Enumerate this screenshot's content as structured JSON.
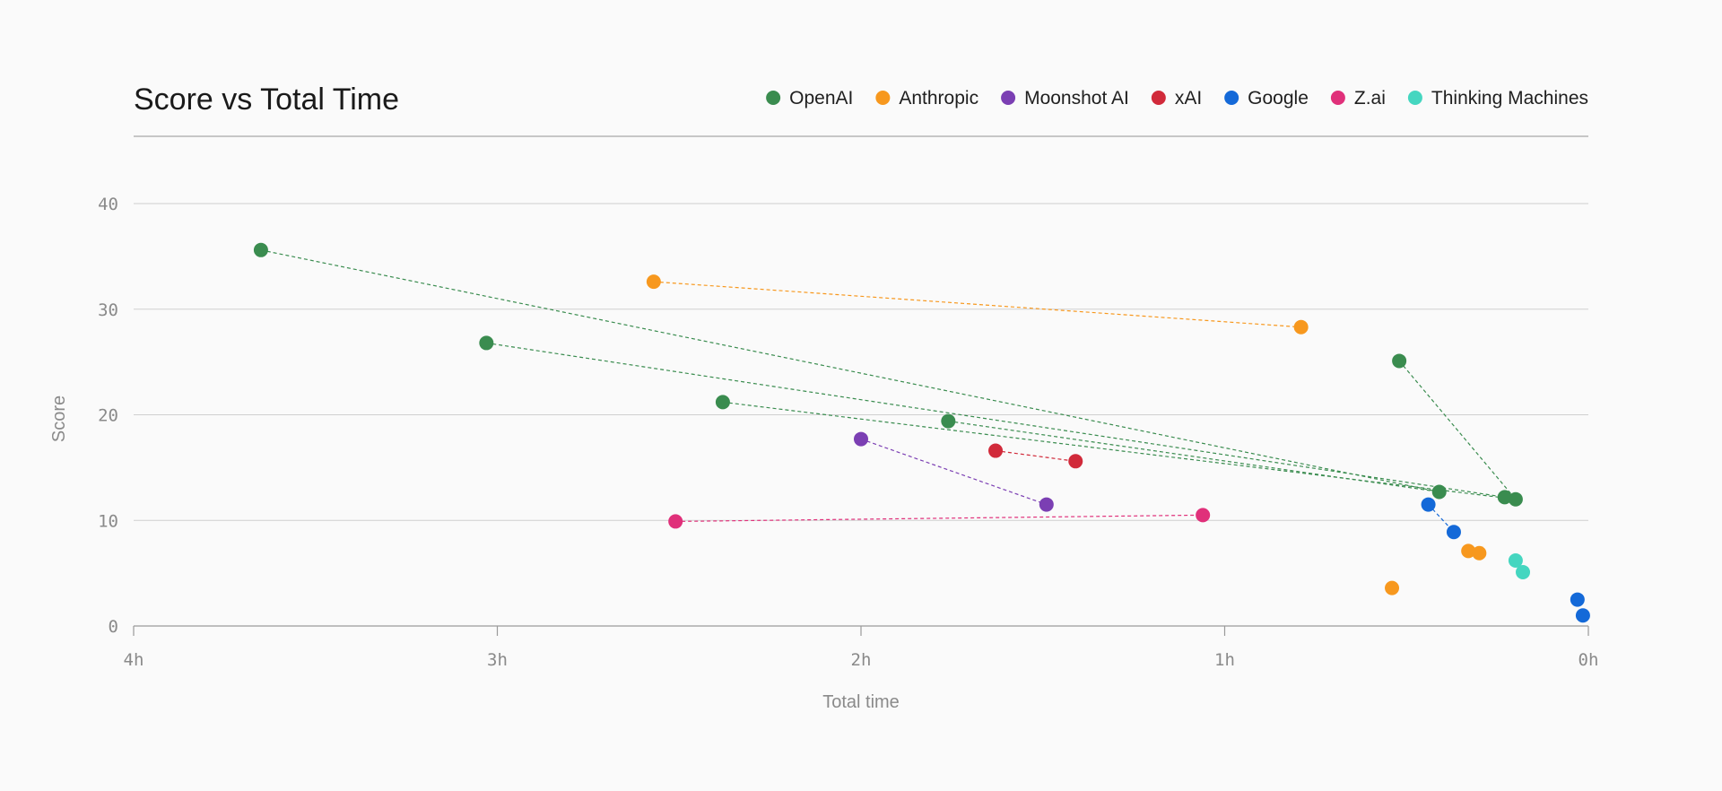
{
  "chart_data": {
    "type": "scatter",
    "title": "Score vs Total Time",
    "xlabel": "Total time",
    "ylabel": "Score",
    "x_unit": "hours",
    "x_reversed": true,
    "xlim": [
      4,
      0
    ],
    "ylim": [
      0,
      40
    ],
    "x_ticks": [
      {
        "value": 4,
        "label": "4h"
      },
      {
        "value": 3,
        "label": "3h"
      },
      {
        "value": 2,
        "label": "2h"
      },
      {
        "value": 1,
        "label": "1h"
      },
      {
        "value": 0,
        "label": "0h"
      }
    ],
    "y_ticks": [
      {
        "value": 0,
        "label": "0"
      },
      {
        "value": 10,
        "label": "10"
      },
      {
        "value": 20,
        "label": "20"
      },
      {
        "value": 30,
        "label": "30"
      },
      {
        "value": 40,
        "label": "40"
      }
    ],
    "grid": true,
    "legend_position": "top-right",
    "series": [
      {
        "name": "OpenAI",
        "color": "#3a8c4f",
        "points": [
          {
            "x": 3.65,
            "y": 35.6
          },
          {
            "x": 3.03,
            "y": 26.8
          },
          {
            "x": 2.38,
            "y": 21.2
          },
          {
            "x": 1.76,
            "y": 19.4
          },
          {
            "x": 0.52,
            "y": 25.1
          },
          {
            "x": 0.41,
            "y": 12.7
          },
          {
            "x": 0.23,
            "y": 12.2
          },
          {
            "x": 0.2,
            "y": 12.0
          }
        ],
        "connections": [
          [
            0,
            5
          ],
          [
            1,
            6
          ],
          [
            2,
            7
          ],
          [
            3,
            5
          ],
          [
            4,
            7
          ]
        ]
      },
      {
        "name": "Anthropic",
        "color": "#f7981e",
        "points": [
          {
            "x": 2.57,
            "y": 32.6
          },
          {
            "x": 0.79,
            "y": 28.3
          },
          {
            "x": 0.54,
            "y": 3.6
          },
          {
            "x": 0.33,
            "y": 7.1
          },
          {
            "x": 0.3,
            "y": 6.9
          }
        ],
        "connections": [
          [
            0,
            1
          ]
        ]
      },
      {
        "name": "Moonshot AI",
        "color": "#7b3fb3",
        "points": [
          {
            "x": 2.0,
            "y": 17.7
          },
          {
            "x": 1.49,
            "y": 11.5
          }
        ],
        "connections": [
          [
            0,
            1
          ]
        ]
      },
      {
        "name": "xAI",
        "color": "#d12a3a",
        "points": [
          {
            "x": 1.63,
            "y": 16.6
          },
          {
            "x": 1.41,
            "y": 15.6
          }
        ],
        "connections": [
          [
            0,
            1
          ]
        ]
      },
      {
        "name": "Google",
        "color": "#1469d8",
        "points": [
          {
            "x": 0.44,
            "y": 11.5
          },
          {
            "x": 0.37,
            "y": 8.9
          },
          {
            "x": 0.03,
            "y": 2.5
          },
          {
            "x": 0.015,
            "y": 1.0
          }
        ],
        "connections": [
          [
            0,
            1
          ]
        ]
      },
      {
        "name": "Z.ai",
        "color": "#e0307a",
        "points": [
          {
            "x": 2.51,
            "y": 9.9
          },
          {
            "x": 1.06,
            "y": 10.5
          }
        ],
        "connections": [
          [
            0,
            1
          ]
        ]
      },
      {
        "name": "Thinking Machines",
        "color": "#45d6c0",
        "points": [
          {
            "x": 0.2,
            "y": 6.2
          },
          {
            "x": 0.18,
            "y": 5.1
          }
        ],
        "connections": []
      }
    ]
  }
}
